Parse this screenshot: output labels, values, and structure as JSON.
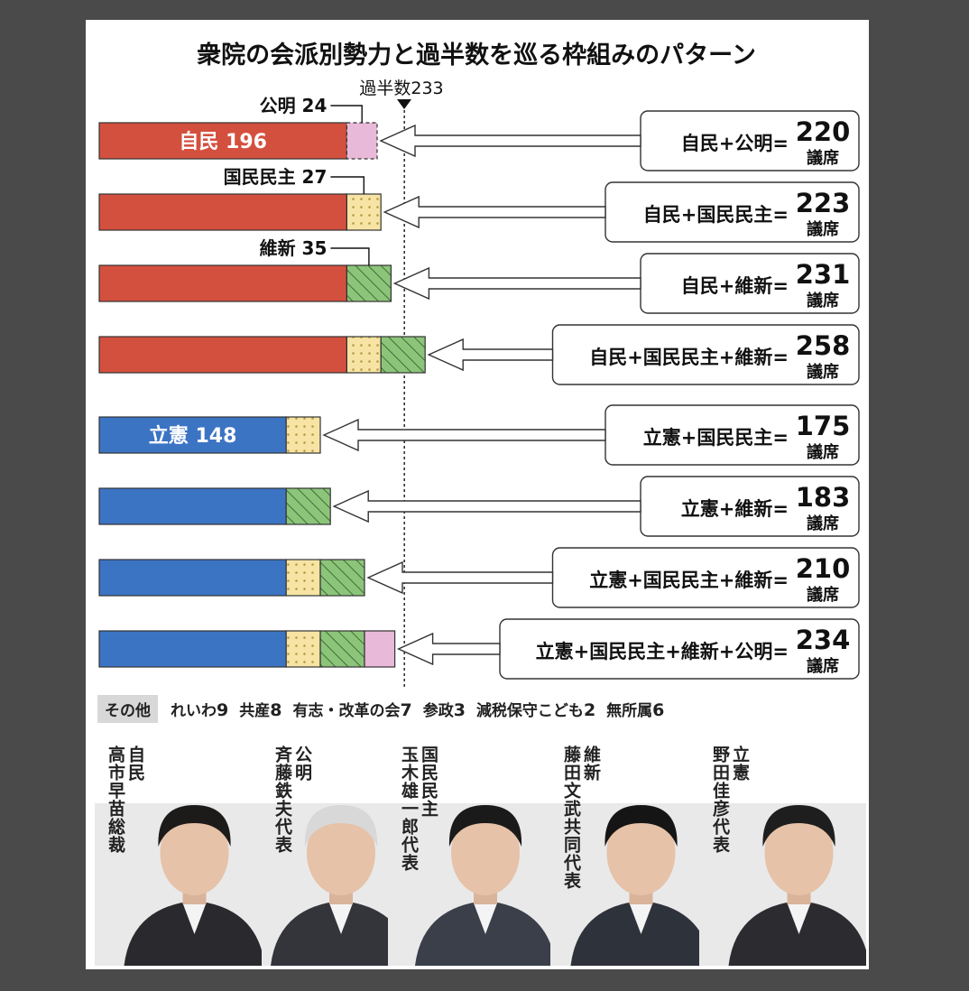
{
  "chart_data": {
    "type": "bar",
    "stacked": true,
    "orientation": "horizontal",
    "title": "衆院の会派別勢力と過半数を巡る枠組みのパターン",
    "majority_label": "過半数233",
    "majority": 233,
    "xlim": [
      0,
      258
    ],
    "party_colors": {
      "自民": "#d4503e",
      "立憲": "#3c74c4",
      "公明": "#e8b9d8",
      "国民民主": "#f7e4a4",
      "維新": "#8cc57a"
    },
    "pattern_for": {
      "国民民主": "dots",
      "維新": "hatch"
    },
    "rows": [
      {
        "segments": [
          {
            "party": "自民",
            "value": 196,
            "label": "自民 196"
          },
          {
            "party": "公明",
            "value": 24,
            "callout": "公明 24",
            "dashed": true
          }
        ],
        "formula": "自民+公明=",
        "total": "220",
        "unit": "議席"
      },
      {
        "segments": [
          {
            "party": "自民",
            "value": 196
          },
          {
            "party": "国民民主",
            "value": 27,
            "callout": "国民民主 27"
          }
        ],
        "formula": "自民+国民民主=",
        "total": "223",
        "unit": "議席"
      },
      {
        "segments": [
          {
            "party": "自民",
            "value": 196
          },
          {
            "party": "維新",
            "value": 35,
            "callout": "維新 35"
          }
        ],
        "formula": "自民+維新=",
        "total": "231",
        "unit": "議席"
      },
      {
        "segments": [
          {
            "party": "自民",
            "value": 196
          },
          {
            "party": "国民民主",
            "value": 27
          },
          {
            "party": "維新",
            "value": 35
          }
        ],
        "formula": "自民+国民民主+維新=",
        "total": "258",
        "unit": "議席"
      },
      {
        "segments": [
          {
            "party": "立憲",
            "value": 148,
            "label": "立憲 148"
          },
          {
            "party": "国民民主",
            "value": 27
          }
        ],
        "formula": "立憲+国民民主=",
        "total": "175",
        "unit": "議席"
      },
      {
        "segments": [
          {
            "party": "立憲",
            "value": 148
          },
          {
            "party": "維新",
            "value": 35
          }
        ],
        "formula": "立憲+維新=",
        "total": "183",
        "unit": "議席"
      },
      {
        "segments": [
          {
            "party": "立憲",
            "value": 148
          },
          {
            "party": "国民民主",
            "value": 27
          },
          {
            "party": "維新",
            "value": 35
          }
        ],
        "formula": "立憲+国民民主+維新=",
        "total": "210",
        "unit": "議席"
      },
      {
        "segments": [
          {
            "party": "立憲",
            "value": 148
          },
          {
            "party": "国民民主",
            "value": 27
          },
          {
            "party": "維新",
            "value": 35
          },
          {
            "party": "公明",
            "value": 24
          }
        ],
        "formula": "立憲+国民民主+維新+公明=",
        "total": "234",
        "unit": "議席"
      }
    ]
  },
  "others": {
    "label": "その他",
    "items": [
      {
        "name": "れいわ",
        "value": "9"
      },
      {
        "name": "共産",
        "value": "8"
      },
      {
        "name": "有志・改革の会",
        "value": "7"
      },
      {
        "name": "参政",
        "value": "3"
      },
      {
        "name": "減税保守こども",
        "value": "2"
      },
      {
        "name": "無所属",
        "value": "6"
      }
    ]
  },
  "leaders": [
    {
      "party": "自民",
      "name": "高市早苗総裁"
    },
    {
      "party": "公明",
      "name": "斉藤鉄夫代表"
    },
    {
      "party": "国民民主",
      "name": "玉木雄一郎代表"
    },
    {
      "party": "維新",
      "name": "藤田文武共同代表"
    },
    {
      "party": "立憲",
      "name": "野田佳彦代表"
    }
  ]
}
